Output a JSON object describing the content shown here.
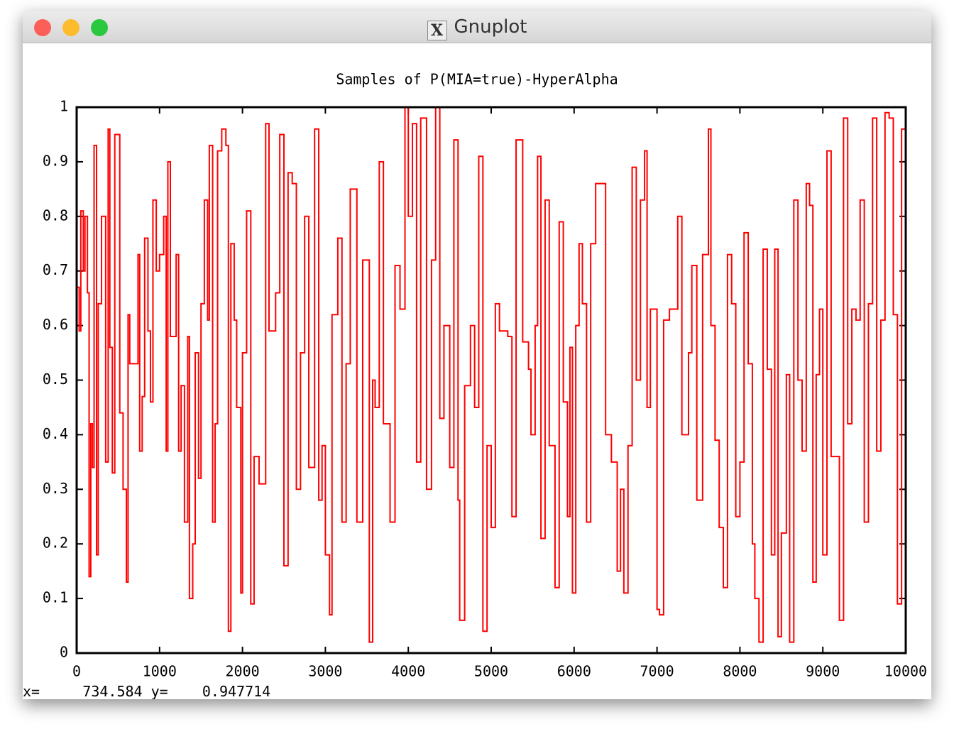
{
  "window": {
    "title": "Gnuplot"
  },
  "chart_data": {
    "type": "step",
    "title": "Samples of P(MIA=true)-HyperAlpha",
    "series": [
      {
        "color": "#ff0000",
        "x": [
          0,
          30,
          50,
          80,
          100,
          130,
          150,
          170,
          190,
          210,
          240,
          260,
          300,
          350,
          380,
          400,
          430,
          460,
          520,
          560,
          600,
          620,
          640,
          700,
          740,
          760,
          790,
          820,
          860,
          890,
          920,
          960,
          1000,
          1050,
          1080,
          1100,
          1130,
          1200,
          1230,
          1260,
          1300,
          1340,
          1360,
          1400,
          1430,
          1470,
          1500,
          1540,
          1580,
          1600,
          1640,
          1670,
          1700,
          1750,
          1800,
          1830,
          1860,
          1900,
          1930,
          1980,
          2000,
          2050,
          2100,
          2140,
          2200,
          2280,
          2320,
          2400,
          2450,
          2500,
          2550,
          2600,
          2650,
          2700,
          2750,
          2800,
          2870,
          2920,
          2960,
          3000,
          3050,
          3080,
          3150,
          3200,
          3250,
          3300,
          3380,
          3450,
          3530,
          3570,
          3600,
          3650,
          3700,
          3780,
          3840,
          3900,
          3960,
          4000,
          4050,
          4100,
          4150,
          4220,
          4280,
          4330,
          4380,
          4430,
          4500,
          4550,
          4600,
          4620,
          4680,
          4750,
          4800,
          4850,
          4900,
          4950,
          5000,
          5050,
          5100,
          5200,
          5250,
          5300,
          5380,
          5450,
          5480,
          5530,
          5560,
          5600,
          5650,
          5700,
          5770,
          5820,
          5870,
          5920,
          5950,
          5980,
          6020,
          6060,
          6100,
          6150,
          6200,
          6260,
          6380,
          6450,
          6520,
          6560,
          6600,
          6650,
          6700,
          6750,
          6800,
          6850,
          6880,
          6920,
          7000,
          7030,
          7080,
          7150,
          7250,
          7300,
          7380,
          7420,
          7480,
          7550,
          7620,
          7650,
          7700,
          7750,
          7800,
          7850,
          7900,
          7950,
          8000,
          8050,
          8100,
          8150,
          8180,
          8230,
          8280,
          8330,
          8380,
          8420,
          8460,
          8500,
          8560,
          8600,
          8650,
          8700,
          8750,
          8800,
          8840,
          8880,
          8920,
          8960,
          9000,
          9050,
          9100,
          9200,
          9250,
          9300,
          9350,
          9400,
          9450,
          9500,
          9550,
          9600,
          9650,
          9700,
          9750,
          9800,
          9850,
          9900,
          9950,
          10000
        ],
        "values": [
          0.67,
          0.59,
          0.81,
          0.7,
          0.8,
          0.66,
          0.14,
          0.42,
          0.34,
          0.93,
          0.18,
          0.64,
          0.8,
          0.35,
          0.96,
          0.56,
          0.33,
          0.95,
          0.44,
          0.3,
          0.13,
          0.62,
          0.53,
          0.53,
          0.73,
          0.37,
          0.47,
          0.76,
          0.59,
          0.46,
          0.83,
          0.7,
          0.73,
          0.8,
          0.37,
          0.9,
          0.58,
          0.73,
          0.37,
          0.49,
          0.24,
          0.58,
          0.1,
          0.2,
          0.55,
          0.32,
          0.64,
          0.83,
          0.61,
          0.93,
          0.24,
          0.42,
          0.92,
          0.96,
          0.93,
          0.04,
          0.75,
          0.61,
          0.45,
          0.11,
          0.55,
          0.81,
          0.09,
          0.36,
          0.31,
          0.97,
          0.59,
          0.66,
          0.95,
          0.16,
          0.88,
          0.86,
          0.3,
          0.55,
          0.8,
          0.34,
          0.96,
          0.28,
          0.38,
          0.18,
          0.07,
          0.62,
          0.76,
          0.24,
          0.53,
          0.85,
          0.24,
          0.72,
          0.02,
          0.5,
          0.45,
          0.9,
          0.42,
          0.24,
          0.71,
          0.63,
          1.0,
          0.8,
          0.97,
          0.35,
          0.98,
          0.3,
          0.72,
          1.0,
          0.43,
          0.6,
          0.34,
          0.94,
          0.28,
          0.06,
          0.49,
          0.6,
          0.45,
          0.91,
          0.04,
          0.38,
          0.23,
          0.64,
          0.59,
          0.58,
          0.25,
          0.94,
          0.57,
          0.52,
          0.4,
          0.6,
          0.91,
          0.21,
          0.83,
          0.38,
          0.12,
          0.79,
          0.46,
          0.25,
          0.56,
          0.11,
          0.6,
          0.75,
          0.64,
          0.24,
          0.75,
          0.86,
          0.4,
          0.35,
          0.15,
          0.3,
          0.11,
          0.38,
          0.89,
          0.5,
          0.83,
          0.92,
          0.45,
          0.63,
          0.08,
          0.07,
          0.61,
          0.63,
          0.8,
          0.4,
          0.55,
          0.71,
          0.28,
          0.73,
          0.96,
          0.6,
          0.39,
          0.23,
          0.12,
          0.73,
          0.64,
          0.25,
          0.35,
          0.77,
          0.53,
          0.2,
          0.1,
          0.02,
          0.74,
          0.52,
          0.18,
          0.74,
          0.03,
          0.22,
          0.51,
          0.02,
          0.83,
          0.5,
          0.37,
          0.86,
          0.82,
          0.13,
          0.51,
          0.63,
          0.18,
          0.92,
          0.36,
          0.06,
          0.98,
          0.42,
          0.63,
          0.61,
          0.83,
          0.24,
          0.64,
          0.98,
          0.37,
          0.61,
          0.99,
          0.98,
          0.62,
          0.09,
          0.96,
          0.96
        ]
      }
    ],
    "xlim": [
      0,
      10000
    ],
    "xticks": [
      0,
      1000,
      2000,
      3000,
      4000,
      5000,
      6000,
      7000,
      8000,
      9000,
      10000
    ],
    "ylim": [
      0,
      1
    ],
    "yticks": [
      0,
      0.1,
      0.2,
      0.3,
      0.4,
      0.5,
      0.6,
      0.7,
      0.8,
      0.9,
      1
    ]
  },
  "status_bar": "x=     734.584 y=    0.947714"
}
